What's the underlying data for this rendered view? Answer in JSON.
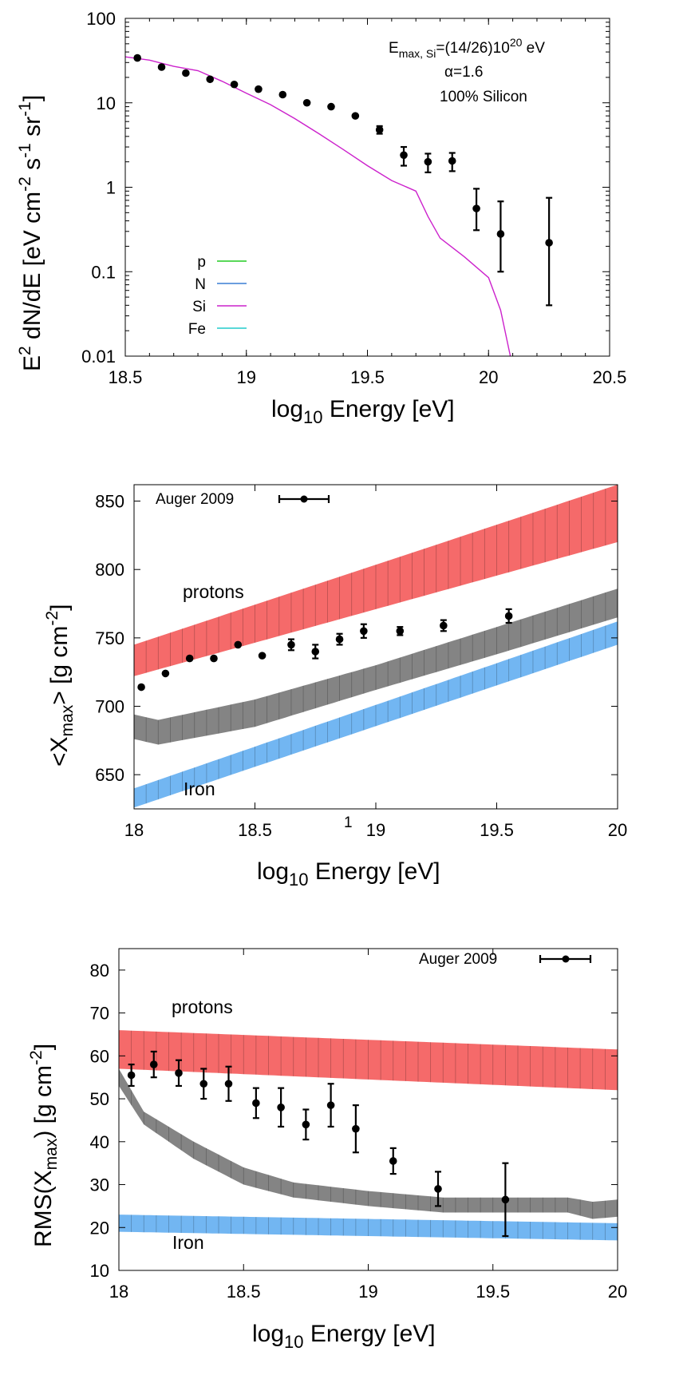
{
  "chart_data": [
    {
      "type": "scatter",
      "xlabel": "log10 Energy [eV]",
      "ylabel": "E2 dN/dE [eV cm-2 s-1 sr-1]",
      "x_ticks": [
        "18.5",
        "19",
        "19.5",
        "20",
        "20.5"
      ],
      "y_ticks": [
        "0.01",
        "0.1",
        "1",
        "10",
        "100"
      ],
      "xlim": [
        18.5,
        20.5
      ],
      "ylim": [
        0.01,
        100
      ],
      "yscale": "log",
      "annotations": {
        "emax_main": "E",
        "emax_sub": "max, Si",
        "emax_mid": "=(14/26)10",
        "emax_sup": "20",
        "emax_unit": " eV",
        "alpha": "α=1.6",
        "composition": "100% Silicon"
      },
      "legend": {
        "placement": "bottom-left",
        "entries": [
          {
            "label": "p",
            "color": "#22cc22"
          },
          {
            "label": "N",
            "color": "#3a7fd4"
          },
          {
            "label": "Si",
            "color": "#cc22cc"
          },
          {
            "label": "Fe",
            "color": "#22cccc"
          }
        ]
      },
      "series": [
        {
          "name": "Si",
          "kind": "line",
          "color": "#cc22cc",
          "x": [
            18.5,
            18.6,
            18.7,
            18.8,
            18.9,
            19.0,
            19.1,
            19.2,
            19.3,
            19.4,
            19.5,
            19.6,
            19.7,
            19.75,
            19.8,
            19.9,
            20.0,
            20.05,
            20.09
          ],
          "y": [
            35,
            32,
            27,
            24,
            18,
            13,
            9.5,
            6.5,
            4.3,
            2.8,
            1.8,
            1.2,
            0.9,
            0.45,
            0.25,
            0.15,
            0.085,
            0.035,
            0.01
          ]
        },
        {
          "name": "data",
          "kind": "points",
          "x": [
            18.55,
            18.65,
            18.75,
            18.85,
            18.95,
            19.05,
            19.15,
            19.25,
            19.35,
            19.45,
            19.55,
            19.65,
            19.75,
            19.85,
            19.95,
            20.05,
            20.25
          ],
          "y": [
            34,
            26.5,
            22.5,
            19,
            16.5,
            14.5,
            12.5,
            10,
            9,
            7,
            4.8,
            2.4,
            2.0,
            2.05,
            0.56,
            0.28,
            0.22
          ],
          "err_low": [
            0,
            0,
            0,
            0,
            0,
            0,
            0,
            0,
            0,
            0,
            0.5,
            0.6,
            0.5,
            0.5,
            0.25,
            0.18,
            0.18
          ],
          "err_high": [
            0,
            0,
            0,
            0,
            0,
            0,
            0,
            0,
            0,
            0,
            0.5,
            0.6,
            0.5,
            0.5,
            0.4,
            0.4,
            0.53
          ]
        }
      ]
    },
    {
      "type": "scatter",
      "xlabel": "log10 Energy [eV]",
      "ylabel": "<Xmax> [g cm-2]",
      "x_ticks": [
        "18",
        "18.5",
        "19",
        "19.5",
        "20"
      ],
      "y_ticks": [
        "650",
        "700",
        "750",
        "800",
        "850"
      ],
      "xlim": [
        18,
        20
      ],
      "ylim": [
        625,
        862
      ],
      "annotations": {
        "stray": "1",
        "protons": "protons",
        "iron": "Iron"
      },
      "legend": {
        "placement": "top-left",
        "entries": [
          {
            "label": "Auger 2009"
          }
        ]
      },
      "bands": [
        {
          "name": "protons",
          "color": "#f56a6a",
          "x": [
            18,
            20
          ],
          "low": [
            722,
            820
          ],
          "high": [
            745,
            862
          ]
        },
        {
          "name": "mixed",
          "color": "#6e6e6e",
          "x": [
            18,
            18.1,
            18.5,
            19.0,
            19.5,
            20.0
          ],
          "low": [
            676,
            672,
            685,
            712,
            738,
            765
          ],
          "high": [
            694,
            690,
            705,
            730,
            758,
            786
          ]
        },
        {
          "name": "Iron",
          "color": "#72b6f2",
          "x": [
            18,
            20
          ],
          "low": [
            626,
            745
          ],
          "high": [
            640,
            762
          ]
        }
      ],
      "series": [
        {
          "name": "Auger 2009",
          "x": [
            18.03,
            18.13,
            18.23,
            18.33,
            18.43,
            18.53,
            18.65,
            18.75,
            18.85,
            18.95,
            19.1,
            19.28,
            19.55
          ],
          "y": [
            714,
            724,
            735,
            735,
            745,
            737,
            745,
            740,
            749,
            755,
            755,
            759,
            766
          ],
          "err": [
            2,
            2,
            2,
            2,
            2,
            2,
            4,
            5,
            4,
            5,
            3,
            4,
            5
          ]
        }
      ]
    },
    {
      "type": "scatter",
      "xlabel": "log10 Energy [eV]",
      "ylabel": "RMS(Xmax) [g cm-2]",
      "x_ticks": [
        "18",
        "18.5",
        "19",
        "19.5",
        "20"
      ],
      "y_ticks": [
        "10",
        "20",
        "30",
        "40",
        "50",
        "60",
        "70",
        "80"
      ],
      "xlim": [
        18,
        20
      ],
      "ylim": [
        10,
        85
      ],
      "annotations": {
        "protons": "protons",
        "iron": "Iron"
      },
      "legend": {
        "placement": "top-right",
        "entries": [
          {
            "label": "Auger 2009"
          }
        ]
      },
      "bands": [
        {
          "name": "protons",
          "color": "#f56a6a",
          "x": [
            18,
            20
          ],
          "low": [
            57,
            52
          ],
          "high": [
            66,
            61.5
          ]
        },
        {
          "name": "mixed",
          "color": "#6e6e6e",
          "x": [
            18.0,
            18.1,
            18.3,
            18.5,
            18.7,
            19.0,
            19.3,
            19.6,
            19.8,
            19.9,
            20.0
          ],
          "low": [
            53,
            44,
            36,
            30,
            27,
            25,
            23.5,
            23.5,
            23.5,
            22,
            22.5
          ],
          "high": [
            57,
            47,
            40,
            34,
            30.5,
            28.5,
            27,
            27,
            27,
            26,
            26.5
          ]
        },
        {
          "name": "Iron",
          "color": "#72b6f2",
          "x": [
            18,
            20
          ],
          "low": [
            19,
            17
          ],
          "high": [
            23,
            21
          ]
        }
      ],
      "series": [
        {
          "name": "Auger 2009",
          "x": [
            18.05,
            18.14,
            18.24,
            18.34,
            18.44,
            18.55,
            18.65,
            18.75,
            18.85,
            18.95,
            19.1,
            19.28,
            19.55
          ],
          "y": [
            55.5,
            58,
            56,
            53.5,
            53.5,
            49,
            48,
            44,
            48.5,
            43,
            35.5,
            29,
            26.5
          ],
          "err": [
            2.5,
            3,
            3,
            3.5,
            4,
            3.5,
            4.5,
            3.5,
            5,
            5.5,
            3,
            4,
            8.5
          ]
        }
      ]
    }
  ]
}
